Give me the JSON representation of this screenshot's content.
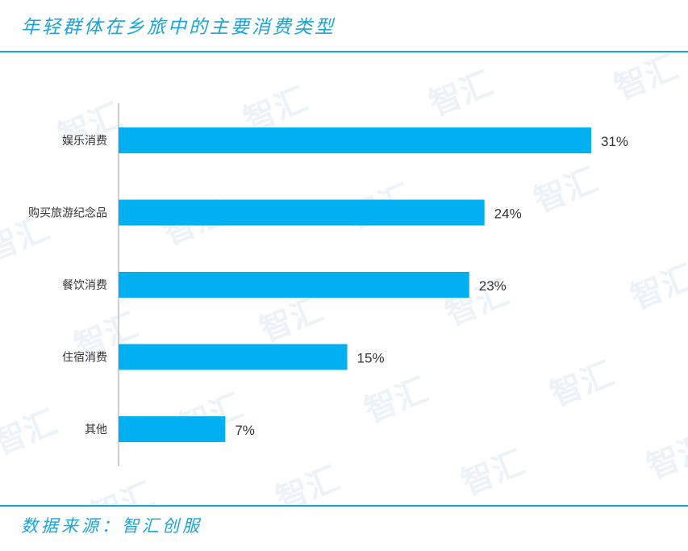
{
  "title": "年轻群体在乡旅中的主要消费类型",
  "source": "数据来源：智汇创服",
  "watermark": "智汇",
  "colors": {
    "accent": "#1aa3d9",
    "bar": "#00b0f0",
    "axis": "#bfbfbf",
    "label": "#333333"
  },
  "chart_data": {
    "type": "bar",
    "orientation": "horizontal",
    "title": "年轻群体在乡旅中的主要消费类型",
    "categories": [
      "娱乐消费",
      "购买旅游纪念品",
      "餐饮消费",
      "住宿消费",
      "其他"
    ],
    "values": [
      31,
      24,
      23,
      15,
      7
    ],
    "value_labels": [
      "31%",
      "24%",
      "23%",
      "15%",
      "7%"
    ],
    "xlim": [
      0,
      31
    ],
    "unit": "%",
    "grid": false,
    "legend": "none"
  }
}
